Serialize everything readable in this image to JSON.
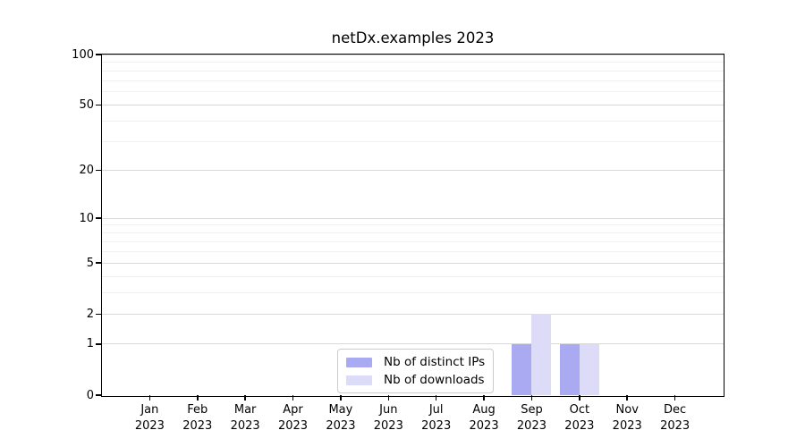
{
  "chart_data": {
    "type": "bar",
    "title": "netDx.examples 2023",
    "categories": [
      "Jan",
      "Feb",
      "Mar",
      "Apr",
      "May",
      "Jun",
      "Jul",
      "Aug",
      "Sep",
      "Oct",
      "Nov",
      "Dec"
    ],
    "year": "2023",
    "series": [
      {
        "name": "Nb of distinct IPs",
        "color": "#aaaaf2",
        "values": [
          0,
          0,
          0,
          0,
          0,
          0,
          0,
          0,
          1,
          1,
          0,
          0
        ]
      },
      {
        "name": "Nb of downloads",
        "color": "#dcdcf8",
        "values": [
          0,
          0,
          0,
          0,
          0,
          0,
          0,
          0,
          2,
          1,
          0,
          0
        ]
      }
    ],
    "xlabel": "",
    "ylabel": "",
    "y_scale": "log1p",
    "ylim": [
      0,
      100
    ],
    "y_ticks": [
      0,
      1,
      2,
      5,
      10,
      20,
      50,
      100
    ],
    "y_minor_gridlines": [
      3,
      4,
      6,
      7,
      8,
      9,
      30,
      40,
      60,
      70,
      80,
      90
    ],
    "grid": true,
    "legend_position": "lower-center"
  },
  "colors": {
    "major_grid": "#d9d9d9",
    "minor_grid": "#f0f0f0",
    "axis": "#000000",
    "background": "#ffffff",
    "legend_border": "#cccccc"
  }
}
